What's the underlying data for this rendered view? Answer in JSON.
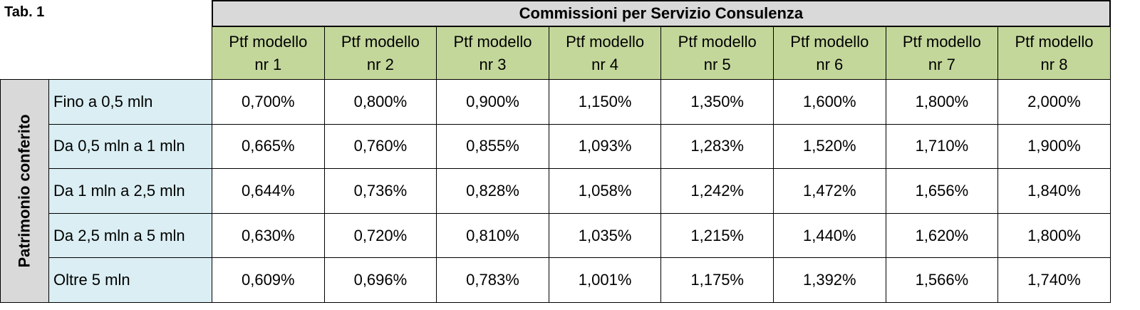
{
  "title": "Tab. 1",
  "table": {
    "header": "Commissioni per Servizio Consulenza",
    "columns": [
      "Ptf modello nr 1",
      "Ptf modello nr 2",
      "Ptf modello nr 3",
      "Ptf modello nr 4",
      "Ptf modello nr 5",
      "Ptf modello nr 6",
      "Ptf modello nr 7",
      "Ptf modello nr 8"
    ],
    "row_group": "Patrimonio conferito",
    "rows": [
      {
        "label": "Fino a 0,5 mln",
        "cells": [
          "0,700%",
          "0,800%",
          "0,900%",
          "1,150%",
          "1,350%",
          "1,600%",
          "1,800%",
          "2,000%"
        ]
      },
      {
        "label": "Da 0,5 mln a 1 mln",
        "cells": [
          "0,665%",
          "0,760%",
          "0,855%",
          "1,093%",
          "1,283%",
          "1,520%",
          "1,710%",
          "1,900%"
        ]
      },
      {
        "label": "Da 1 mln a 2,5 mln",
        "cells": [
          "0,644%",
          "0,736%",
          "0,828%",
          "1,058%",
          "1,242%",
          "1,472%",
          "1,656%",
          "1,840%"
        ]
      },
      {
        "label": "Da 2,5 mln a 5 mln",
        "cells": [
          "0,630%",
          "0,720%",
          "0,810%",
          "1,035%",
          "1,215%",
          "1,440%",
          "1,620%",
          "1,800%"
        ]
      },
      {
        "label": "Oltre 5 mln",
        "cells": [
          "0,609%",
          "0,696%",
          "0,783%",
          "1,001%",
          "1,175%",
          "1,392%",
          "1,566%",
          "1,740%"
        ]
      }
    ]
  }
}
